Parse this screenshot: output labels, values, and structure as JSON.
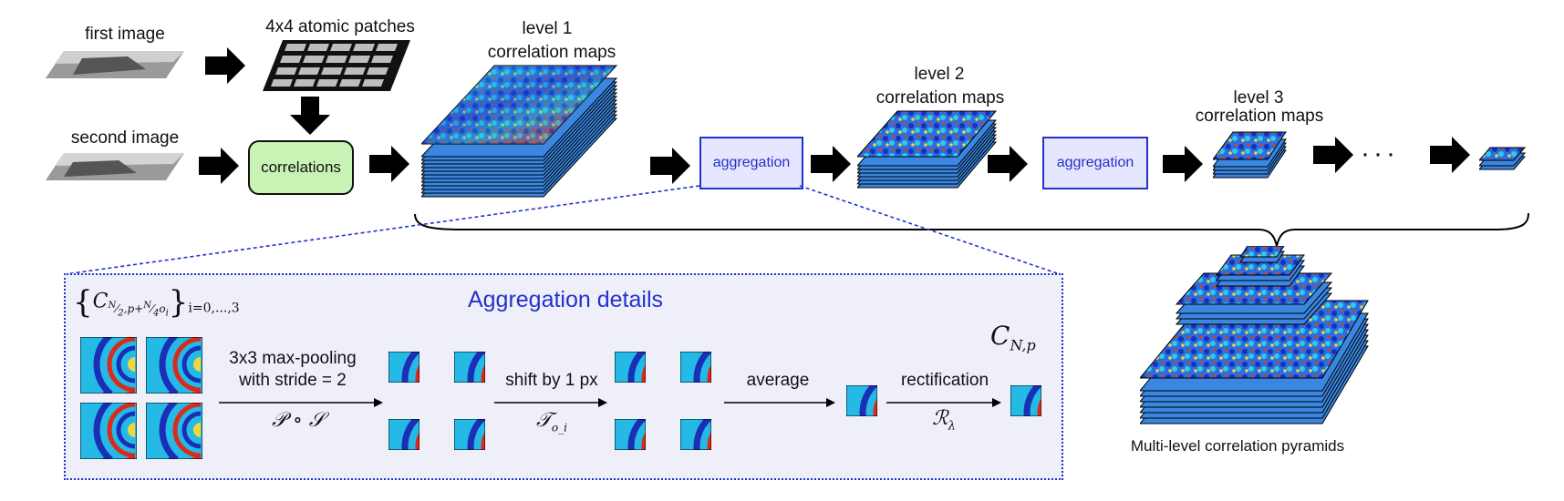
{
  "top_flow": {
    "first_image_label": "first image",
    "second_image_label": "second image",
    "patches_label": "4x4 atomic patches",
    "correlations_label": "correlations",
    "level1_line1": "level 1",
    "level1_line2": "correlation maps",
    "level2_line1": "level 2",
    "level2_line2": "correlation maps",
    "level3_line1": "level 3",
    "level3_line2": "correlation maps",
    "aggregation_label_1": "aggregation",
    "aggregation_label_2": "aggregation",
    "ellipsis": "···"
  },
  "pyramid": {
    "caption": "Multi-level correlation pyramids"
  },
  "details": {
    "title": "Aggregation details",
    "input_formula": "{ C_{N/2, p + N/4 o_i} }_{i=0,...,3}",
    "step1_line1": "3x3 max-pooling",
    "step1_line2": "with stride = 2",
    "step1_op": "𝒫 ∘ 𝒮",
    "step2_line1": "shift by 1 px",
    "step2_op": "𝒯",
    "step2_op_sub": "o_i",
    "step3_line1": "average",
    "step4_line1": "rectification",
    "step4_op": "ℛ",
    "step4_op_sub": "λ",
    "output_formula": "C",
    "output_sub": "N,p"
  },
  "colors": {
    "accent_blue": "#2233cc",
    "green_box": "#c9f2b5",
    "panel_bg": "#efeff9",
    "map_blue": "#1f4fd1",
    "map_cyan": "#27c6e8",
    "map_red": "#d9271a",
    "map_yellow": "#f3e23a"
  }
}
